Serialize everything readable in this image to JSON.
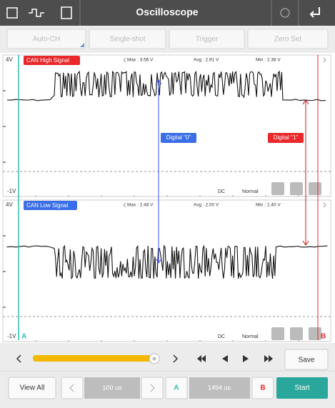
{
  "header": {
    "title": "Oscilloscope"
  },
  "toolbar": {
    "buttons": [
      "Auto-CH",
      "Single-shot",
      "Trigger",
      "Zero Set"
    ]
  },
  "panels": [
    {
      "top_label": "4V",
      "signal": "CAN High Signal",
      "max": "Max : 3.56 V",
      "avg": "Avg : 2.91 V",
      "min": "Min : 2.38 V",
      "bottom_label": "-1V",
      "coupling": "DC",
      "mode": "Normal"
    },
    {
      "top_label": "4V",
      "signal": "CAN Low Signal",
      "max": "Max : 2.48 V",
      "avg": "Avg : 2.00 V",
      "min": "Min : 1.40 V",
      "bottom_label": "-1V",
      "coupling": "DC",
      "mode": "Normal",
      "cursor_a": "A",
      "cursor_b": "B"
    }
  ],
  "annotations": {
    "digital_0": "Digital \"0\"",
    "digital_1": "Digital \"1\""
  },
  "controls": {
    "save": "Save",
    "view_all": "View All",
    "time_div": "100 us",
    "cursor_a": "A",
    "time_span": "1494 us",
    "cursor_b": "B",
    "start": "Start"
  }
}
